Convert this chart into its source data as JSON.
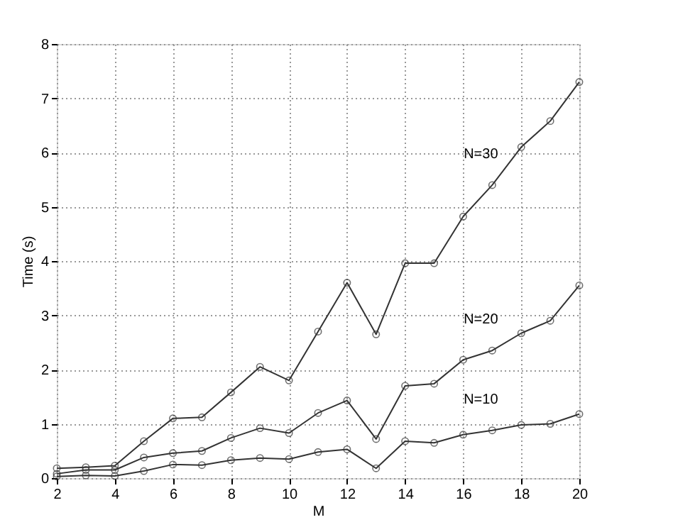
{
  "chart_data": {
    "type": "line",
    "xlabel": "M",
    "ylabel": "Time (s)",
    "x": [
      2,
      3,
      4,
      5,
      6,
      7,
      8,
      9,
      10,
      11,
      12,
      13,
      14,
      15,
      16,
      17,
      18,
      19,
      20
    ],
    "series": [
      {
        "name": "N=30",
        "color": "#333333",
        "marker": "circle",
        "values": [
          0.18,
          0.2,
          0.23,
          0.68,
          1.1,
          1.12,
          1.58,
          2.05,
          1.8,
          2.7,
          3.6,
          2.65,
          3.96,
          3.96,
          4.82,
          5.4,
          6.1,
          6.58,
          7.3
        ]
      },
      {
        "name": "N=20",
        "color": "#333333",
        "marker": "circle",
        "values": [
          0.08,
          0.15,
          0.15,
          0.38,
          0.46,
          0.5,
          0.74,
          0.92,
          0.83,
          1.2,
          1.43,
          0.72,
          1.7,
          1.74,
          2.18,
          2.35,
          2.67,
          2.9,
          3.55
        ]
      },
      {
        "name": "N=10",
        "color": "#333333",
        "marker": "circle",
        "values": [
          0.03,
          0.05,
          0.04,
          0.13,
          0.25,
          0.24,
          0.33,
          0.37,
          0.35,
          0.48,
          0.53,
          0.18,
          0.68,
          0.65,
          0.8,
          0.88,
          0.98,
          1.0,
          1.18
        ]
      }
    ],
    "xlim": [
      2,
      20
    ],
    "xticks": [
      2,
      4,
      6,
      8,
      10,
      12,
      14,
      16,
      18,
      20
    ],
    "ylim": [
      0,
      8
    ],
    "yticks": [
      0,
      1,
      2,
      3,
      4,
      5,
      6,
      7,
      8
    ],
    "grid": true,
    "legend": false,
    "line_style": "solid"
  }
}
